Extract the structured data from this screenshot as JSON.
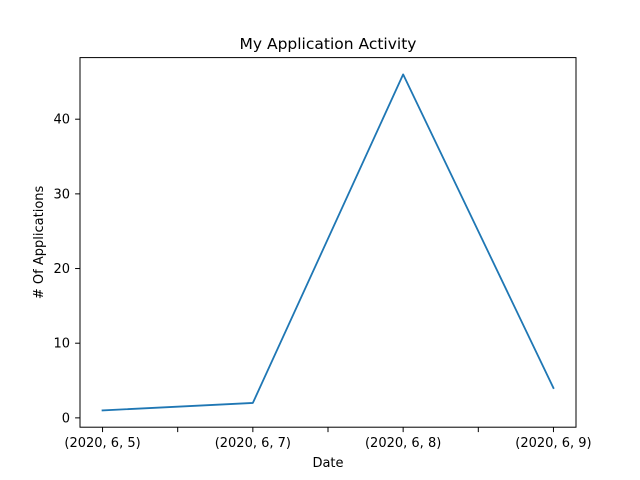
{
  "chart_data": {
    "type": "line",
    "title": "My Application Activity",
    "xlabel": "Date",
    "ylabel": "# Of Applications",
    "x_ticks": [
      {
        "value": 0,
        "label": "(2020, 6, 5)"
      },
      {
        "value": 0.5,
        "label": ""
      },
      {
        "value": 1,
        "label": "(2020, 6, 7)"
      },
      {
        "value": 1.5,
        "label": ""
      },
      {
        "value": 2,
        "label": "(2020, 6, 8)"
      },
      {
        "value": 2.5,
        "label": ""
      },
      {
        "value": 3,
        "label": "(2020, 6, 9)"
      }
    ],
    "y_ticks": [
      0,
      10,
      20,
      30,
      40
    ],
    "xlim": [
      -0.15,
      3.15
    ],
    "ylim": [
      -1.25,
      48.25
    ],
    "grid": false,
    "series": [
      {
        "color": "#1f77b4",
        "x": [
          0,
          1,
          2,
          3
        ],
        "y": [
          1,
          2,
          46,
          4
        ]
      }
    ]
  }
}
